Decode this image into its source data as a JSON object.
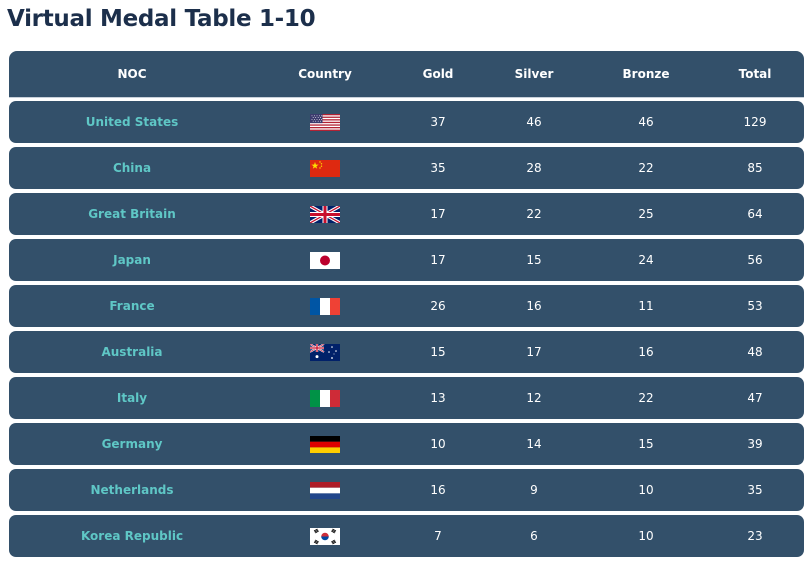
{
  "title": "Virtual Medal Table 1-10",
  "headers": {
    "noc": "NOC",
    "country": "Country",
    "gold": "Gold",
    "silver": "Silver",
    "bronze": "Bronze",
    "total": "Total"
  },
  "rows": [
    {
      "noc": "United States",
      "flag": "us-flag-icon",
      "gold": "37",
      "silver": "46",
      "bronze": "46",
      "total": "129"
    },
    {
      "noc": "China",
      "flag": "china-flag-icon",
      "gold": "35",
      "silver": "28",
      "bronze": "22",
      "total": "85"
    },
    {
      "noc": "Great Britain",
      "flag": "uk-flag-icon",
      "gold": "17",
      "silver": "22",
      "bronze": "25",
      "total": "64"
    },
    {
      "noc": "Japan",
      "flag": "japan-flag-icon",
      "gold": "17",
      "silver": "15",
      "bronze": "24",
      "total": "56"
    },
    {
      "noc": "France",
      "flag": "france-flag-icon",
      "gold": "26",
      "silver": "16",
      "bronze": "11",
      "total": "53"
    },
    {
      "noc": "Australia",
      "flag": "australia-flag-icon",
      "gold": "15",
      "silver": "17",
      "bronze": "16",
      "total": "48"
    },
    {
      "noc": "Italy",
      "flag": "italy-flag-icon",
      "gold": "13",
      "silver": "12",
      "bronze": "22",
      "total": "47"
    },
    {
      "noc": "Germany",
      "flag": "germany-flag-icon",
      "gold": "10",
      "silver": "14",
      "bronze": "15",
      "total": "39"
    },
    {
      "noc": "Netherlands",
      "flag": "netherlands-flag-icon",
      "gold": "16",
      "silver": "9",
      "bronze": "10",
      "total": "35"
    },
    {
      "noc": "Korea Republic",
      "flag": "korea-flag-icon",
      "gold": "7",
      "silver": "6",
      "bronze": "10",
      "total": "23"
    }
  ],
  "colors": {
    "row_background": "#33506a",
    "noc_text": "#5fc7c6",
    "title_text": "#1c2f4b"
  }
}
